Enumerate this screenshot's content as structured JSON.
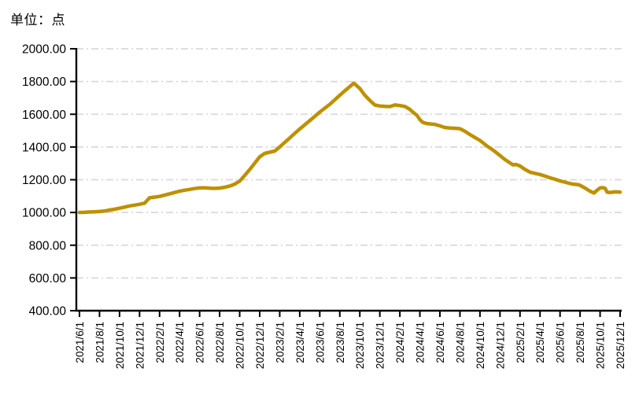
{
  "chart_data": {
    "type": "line",
    "title": "单位：点",
    "legend": "none",
    "grid": "horizontal dash-dot",
    "x_axis": {
      "tick_labels": [
        "2021/6/1",
        "2021/8/1",
        "2021/10/1",
        "2021/12/1",
        "2022/2/1",
        "2022/4/1",
        "2022/6/1",
        "2022/8/1",
        "2022/10/1",
        "2022/12/1",
        "2023/2/1",
        "2023/4/1",
        "2023/6/1",
        "2023/8/1",
        "2023/10/1",
        "2023/12/1",
        "2024/2/1",
        "2024/4/1",
        "2024/6/1",
        "2024/8/1",
        "2024/10/1",
        "2024/12/1",
        "2025/2/1",
        "2025/4/1",
        "2025/6/1",
        "2025/8/1",
        "2025/10/1",
        "2025/12/1"
      ],
      "months_per_tick": 2
    },
    "y_axis": {
      "min": 400,
      "max": 2000,
      "step": 200,
      "tick_labels": [
        "2000.00",
        "1800.00",
        "1600.00",
        "1400.00",
        "1200.00",
        "1000.00",
        "800.00",
        "600.00",
        "400.00"
      ]
    },
    "series": [
      {
        "color": "#BF9000",
        "x_unit": "months_since_2021_06_01",
        "points": [
          [
            0,
            1000
          ],
          [
            0.5,
            1001
          ],
          [
            1,
            1003
          ],
          [
            1.5,
            1004
          ],
          [
            2,
            1006
          ],
          [
            2.5,
            1009
          ],
          [
            3,
            1015
          ],
          [
            3.5,
            1020
          ],
          [
            4,
            1026
          ],
          [
            4.5,
            1033
          ],
          [
            5,
            1040
          ],
          [
            5.5,
            1045
          ],
          [
            6,
            1050
          ],
          [
            6.5,
            1057
          ],
          [
            7,
            1090
          ],
          [
            7.5,
            1094
          ],
          [
            8,
            1098
          ],
          [
            8.5,
            1106
          ],
          [
            9,
            1114
          ],
          [
            9.5,
            1122
          ],
          [
            10,
            1130
          ],
          [
            10.5,
            1136
          ],
          [
            11,
            1141
          ],
          [
            11.5,
            1146
          ],
          [
            12,
            1150
          ],
          [
            12.5,
            1151
          ],
          [
            13,
            1148
          ],
          [
            13.5,
            1147
          ],
          [
            14,
            1149
          ],
          [
            14.5,
            1154
          ],
          [
            15,
            1161
          ],
          [
            15.5,
            1173
          ],
          [
            16,
            1192
          ],
          [
            16.5,
            1226
          ],
          [
            17,
            1262
          ],
          [
            17.5,
            1301
          ],
          [
            18,
            1340
          ],
          [
            18.5,
            1361
          ],
          [
            19,
            1368
          ],
          [
            19.5,
            1375
          ],
          [
            20,
            1400
          ],
          [
            20.5,
            1428
          ],
          [
            21,
            1455
          ],
          [
            21.5,
            1483
          ],
          [
            22,
            1510
          ],
          [
            22.5,
            1536
          ],
          [
            23,
            1561
          ],
          [
            23.5,
            1587
          ],
          [
            24,
            1613
          ],
          [
            24.5,
            1637
          ],
          [
            25,
            1661
          ],
          [
            25.5,
            1688
          ],
          [
            26,
            1716
          ],
          [
            26.5,
            1743
          ],
          [
            27,
            1769
          ],
          [
            27.4,
            1790
          ],
          [
            28,
            1758
          ],
          [
            28.5,
            1716
          ],
          [
            29,
            1685
          ],
          [
            29.5,
            1657
          ],
          [
            30,
            1650
          ],
          [
            30.5,
            1648
          ],
          [
            31,
            1647
          ],
          [
            31.5,
            1657
          ],
          [
            32,
            1653
          ],
          [
            32.5,
            1648
          ],
          [
            33,
            1630
          ],
          [
            33.3,
            1613
          ],
          [
            33.7,
            1594
          ],
          [
            34,
            1567
          ],
          [
            34.3,
            1550
          ],
          [
            34.7,
            1543
          ],
          [
            35,
            1541
          ],
          [
            35.5,
            1538
          ],
          [
            36,
            1529
          ],
          [
            36.5,
            1519
          ],
          [
            37,
            1516
          ],
          [
            37.5,
            1514
          ],
          [
            38,
            1512
          ],
          [
            38.5,
            1496
          ],
          [
            39,
            1476
          ],
          [
            39.5,
            1458
          ],
          [
            40,
            1440
          ],
          [
            40.3,
            1426
          ],
          [
            40.7,
            1406
          ],
          [
            41,
            1394
          ],
          [
            41.5,
            1372
          ],
          [
            42,
            1348
          ],
          [
            42.5,
            1323
          ],
          [
            43,
            1303
          ],
          [
            43.3,
            1291
          ],
          [
            43.6,
            1293
          ],
          [
            44,
            1284
          ],
          [
            44.5,
            1263
          ],
          [
            45,
            1246
          ],
          [
            45.5,
            1239
          ],
          [
            46,
            1232
          ],
          [
            46.5,
            1222
          ],
          [
            47,
            1212
          ],
          [
            47.5,
            1203
          ],
          [
            48,
            1193
          ],
          [
            48.5,
            1185
          ],
          [
            49,
            1177
          ],
          [
            49.4,
            1172
          ],
          [
            49.8,
            1170
          ],
          [
            50,
            1166
          ],
          [
            50.5,
            1149
          ],
          [
            51,
            1130
          ],
          [
            51.4,
            1119
          ],
          [
            51.7,
            1136
          ],
          [
            52,
            1150
          ],
          [
            52.2,
            1152
          ],
          [
            52.5,
            1148
          ],
          [
            52.7,
            1124
          ],
          [
            53,
            1122
          ],
          [
            53.5,
            1126
          ],
          [
            54,
            1124
          ]
        ]
      }
    ],
    "colors": {
      "line": "#BF9000",
      "grid": "#D9D9D9",
      "axis": "#000000",
      "text": "#000000",
      "background": "#FFFFFF"
    }
  }
}
